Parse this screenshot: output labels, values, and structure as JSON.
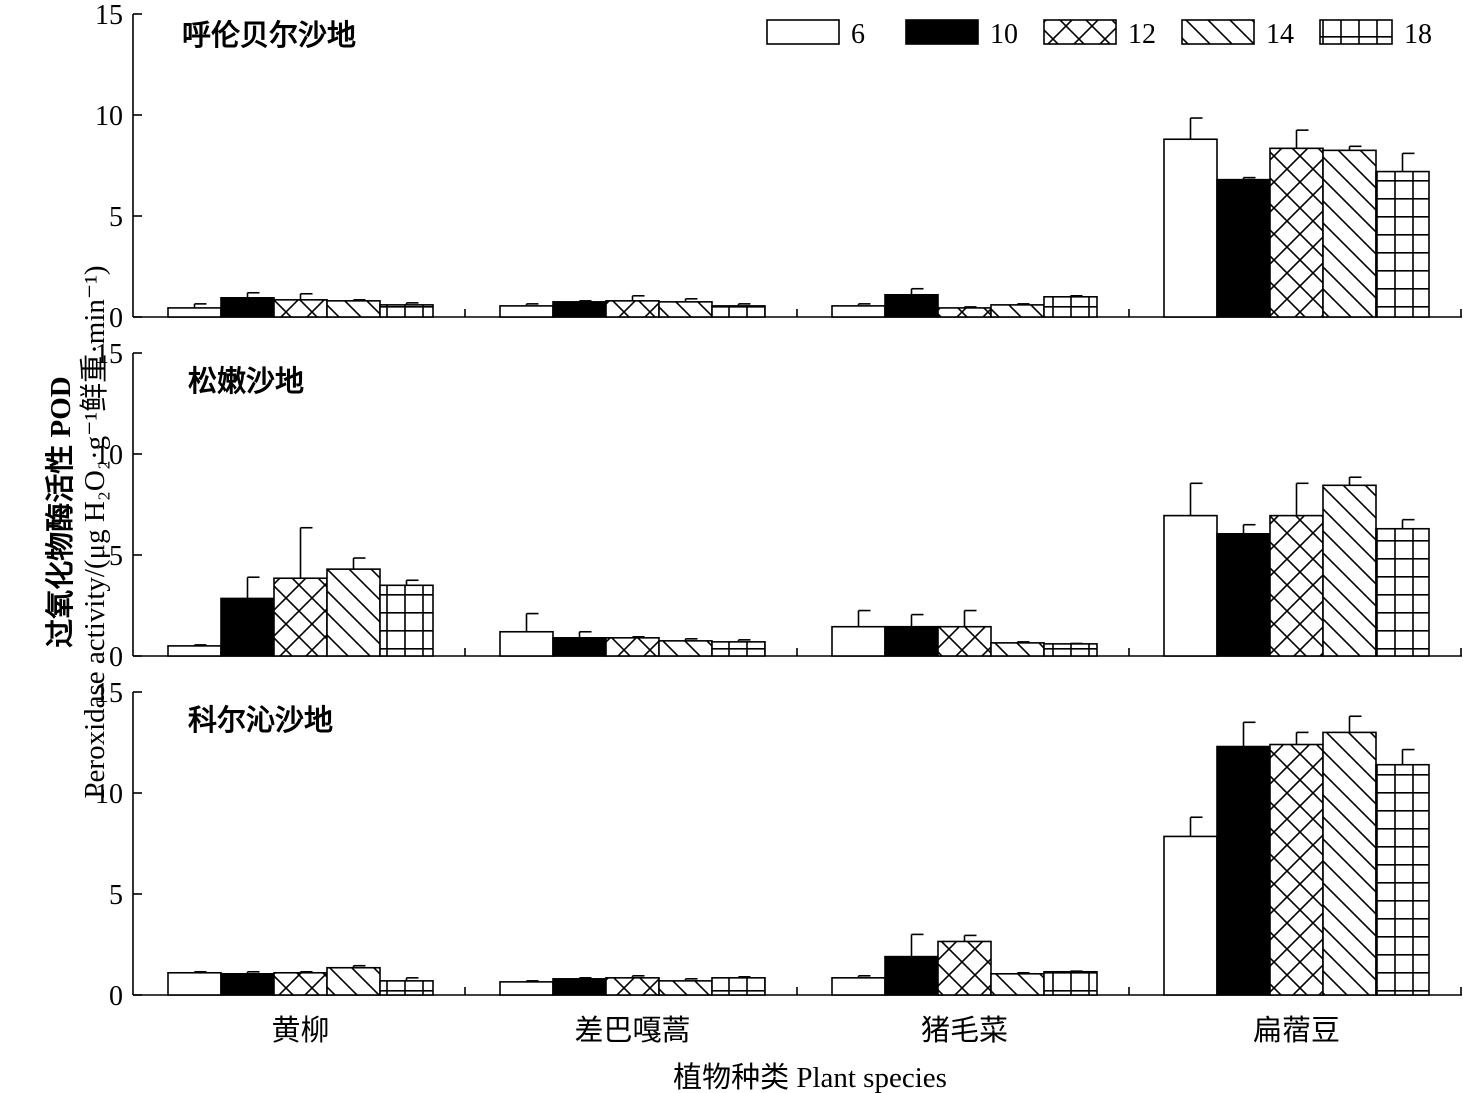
{
  "chart_data": {
    "type": "bar",
    "categories": [
      "黄柳",
      "差巴嘎蒿",
      "猪毛菜",
      "扁蓿豆"
    ],
    "series_names": [
      "6",
      "10",
      "12",
      "14",
      "18"
    ],
    "ylim": [
      0,
      15
    ],
    "yticks": [
      0,
      5,
      10,
      15
    ],
    "ylabel_cn": "过氧化物酶活性 POD",
    "ylabel_en": "Peroxidase activity/(μg H₂O₂·g⁻¹鲜重·min⁻¹)",
    "xlabel": "植物种类 Plant species",
    "legend_position": "top-right",
    "grid": false,
    "patterns": [
      "none",
      "solid-black",
      "crosshatch",
      "diagonal",
      "grid"
    ],
    "panels": [
      {
        "title": "呼伦贝尔沙地",
        "series": [
          {
            "name": "6",
            "values": [
              0.45,
              0.55,
              0.55,
              8.8
            ],
            "errors": [
              0.2,
              0.1,
              0.1,
              1.05
            ]
          },
          {
            "name": "10",
            "values": [
              0.95,
              0.75,
              1.1,
              6.8
            ],
            "errors": [
              0.25,
              0.05,
              0.3,
              0.1
            ]
          },
          {
            "name": "12",
            "values": [
              0.85,
              0.8,
              0.45,
              8.35
            ],
            "errors": [
              0.3,
              0.25,
              0.05,
              0.9
            ]
          },
          {
            "name": "14",
            "values": [
              0.8,
              0.75,
              0.6,
              8.25
            ],
            "errors": [
              0.05,
              0.15,
              0.05,
              0.2
            ]
          },
          {
            "name": "18",
            "values": [
              0.6,
              0.55,
              1.0,
              7.2
            ],
            "errors": [
              0.1,
              0.1,
              0.05,
              0.9
            ]
          }
        ]
      },
      {
        "title": "松嫩沙地",
        "series": [
          {
            "name": "6",
            "values": [
              0.5,
              1.2,
              1.45,
              6.95
            ],
            "errors": [
              0.05,
              0.9,
              0.8,
              1.6
            ]
          },
          {
            "name": "10",
            "values": [
              2.85,
              0.9,
              1.45,
              6.05
            ],
            "errors": [
              1.05,
              0.3,
              0.6,
              0.45
            ]
          },
          {
            "name": "12",
            "values": [
              3.85,
              0.9,
              1.45,
              6.95
            ],
            "errors": [
              2.5,
              0.05,
              0.8,
              1.6
            ]
          },
          {
            "name": "14",
            "values": [
              4.3,
              0.75,
              0.65,
              8.45
            ],
            "errors": [
              0.55,
              0.1,
              0.05,
              0.4
            ]
          },
          {
            "name": "18",
            "values": [
              3.5,
              0.7,
              0.6,
              6.3
            ],
            "errors": [
              0.25,
              0.1,
              0.02,
              0.45
            ]
          }
        ]
      },
      {
        "title": "科尔沁沙地",
        "series": [
          {
            "name": "6",
            "values": [
              1.1,
              0.65,
              0.85,
              7.85
            ],
            "errors": [
              0.05,
              0.05,
              0.1,
              0.95
            ]
          },
          {
            "name": "10",
            "values": [
              1.05,
              0.8,
              1.9,
              12.3
            ],
            "errors": [
              0.1,
              0.05,
              1.1,
              1.2
            ]
          },
          {
            "name": "12",
            "values": [
              1.1,
              0.85,
              2.65,
              12.4
            ],
            "errors": [
              0.05,
              0.1,
              0.3,
              0.6
            ]
          },
          {
            "name": "14",
            "values": [
              1.35,
              0.7,
              1.05,
              13.0
            ],
            "errors": [
              0.1,
              0.1,
              0.05,
              0.8
            ]
          },
          {
            "name": "18",
            "values": [
              0.7,
              0.85,
              1.15,
              11.4
            ],
            "errors": [
              0.15,
              0.05,
              0.03,
              0.75
            ]
          }
        ]
      }
    ]
  }
}
